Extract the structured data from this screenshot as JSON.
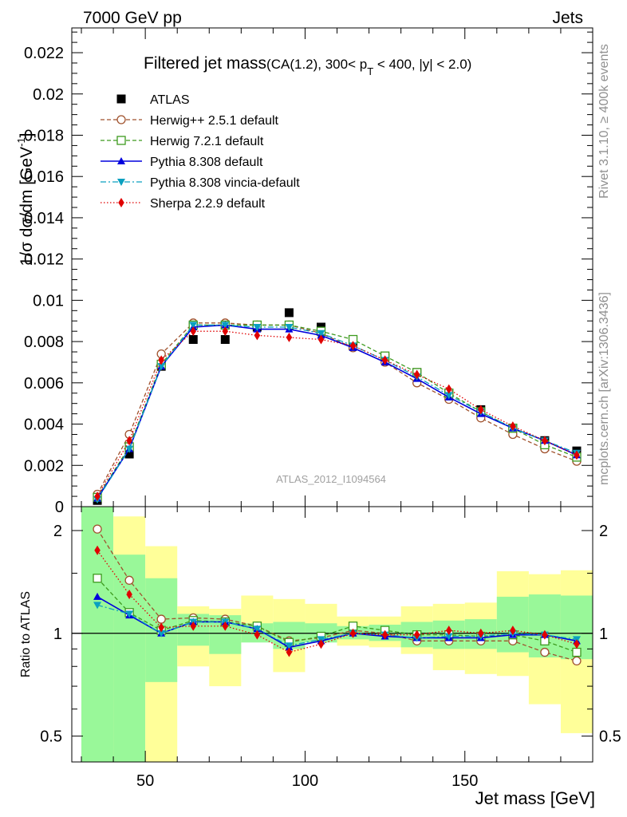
{
  "header": {
    "left": "7000 GeV pp",
    "right": "Jets",
    "title_main": "Filtered jet mass",
    "title_sub_a": "(CA(1.2), 300< p",
    "title_sub_T": "T",
    "title_sub_b": " < 400, |y| < 2.0)",
    "watermark": "ATLAS_2012_I1094564",
    "side_rivet": "Rivet 3.1.10, ≥ 400k events",
    "side_mcplots": "mcplots.cern.ch [arXiv:1306.3436]"
  },
  "colors": {
    "atlas": "#000000",
    "herwigpp": "#a0522d",
    "herwig7": "#3d9a1e",
    "pythia": "#0000dd",
    "vincia": "#0aa0c0",
    "sherpa": "#e00000",
    "band_inner": "#99f899",
    "band_outer": "#ffff99"
  },
  "chart_data": [
    {
      "type": "line",
      "panel": "main",
      "title": "Filtered jet mass(CA(1.2), 300< pT < 400, |y| < 2.0)",
      "xlabel": "Jet mass [GeV]",
      "ylabel": "1/σ dσ/dm [GeV⁻¹]",
      "ylabel_a": "1/σ dσ/dm [GeV",
      "ylabel_sup": "-1",
      "ylabel_b": "]",
      "xlim": [
        27,
        190
      ],
      "ylim": [
        0,
        0.0232
      ],
      "yticks": [
        "0",
        "0.002",
        "0.004",
        "0.006",
        "0.008",
        "0.01",
        "0.012",
        "0.014",
        "0.016",
        "0.018",
        "0.02",
        "0.022"
      ],
      "ytick_values": [
        0,
        0.002,
        0.004,
        0.006,
        0.008,
        0.01,
        0.012,
        0.014,
        0.016,
        0.018,
        0.02,
        0.022
      ],
      "x": [
        35,
        45,
        55,
        65,
        75,
        85,
        95,
        105,
        115,
        125,
        135,
        145,
        155,
        165,
        175,
        185
      ],
      "series": [
        {
          "key": "atlas",
          "name": "ATLAS",
          "marker": "square",
          "style": "points",
          "values": [
            0.0003,
            0.00255,
            0.0068,
            0.0081,
            0.0081,
            0.0087,
            0.0094,
            0.0087,
            0.0078,
            0.0072,
            0.0065,
            0.0055,
            0.0047,
            0.0038,
            0.0032,
            0.0027
          ]
        },
        {
          "key": "herwigpp",
          "name": "Herwig++ 2.5.1 default",
          "marker": "circle-open",
          "style": "dashed",
          "values": [
            0.0006,
            0.0035,
            0.0074,
            0.0089,
            0.0089,
            0.0088,
            0.0088,
            0.0084,
            0.0077,
            0.007,
            0.006,
            0.0052,
            0.0043,
            0.0035,
            0.0028,
            0.0022
          ]
        },
        {
          "key": "herwig7",
          "name": "Herwig 7.2.1 default",
          "marker": "square-open",
          "style": "dashed",
          "values": [
            0.00045,
            0.0029,
            0.0069,
            0.0088,
            0.0088,
            0.0088,
            0.0088,
            0.0085,
            0.0081,
            0.0073,
            0.0065,
            0.0055,
            0.0046,
            0.0038,
            0.003,
            0.0024
          ]
        },
        {
          "key": "pythia",
          "name": "Pythia 8.308 default",
          "marker": "triangle-up",
          "style": "solid",
          "values": [
            0.0004,
            0.0028,
            0.0068,
            0.0087,
            0.0088,
            0.0086,
            0.0086,
            0.0083,
            0.0077,
            0.007,
            0.0062,
            0.0053,
            0.0045,
            0.0038,
            0.0032,
            0.0025
          ]
        },
        {
          "key": "vincia",
          "name": "Pythia 8.308 vincia-default",
          "marker": "triangle-down",
          "style": "dashdot",
          "values": [
            0.00035,
            0.0028,
            0.0068,
            0.0088,
            0.0088,
            0.0087,
            0.0087,
            0.0084,
            0.0078,
            0.0071,
            0.0063,
            0.0054,
            0.0046,
            0.0038,
            0.0032,
            0.0026
          ]
        },
        {
          "key": "sherpa",
          "name": "Sherpa 2.2.9 default",
          "marker": "diamond",
          "style": "dotted",
          "values": [
            0.0005,
            0.0032,
            0.0071,
            0.0085,
            0.0085,
            0.0083,
            0.0082,
            0.0081,
            0.0078,
            0.0071,
            0.0064,
            0.0057,
            0.0047,
            0.0039,
            0.0032,
            0.0025
          ]
        }
      ]
    },
    {
      "type": "line",
      "panel": "ratio",
      "xlabel": "Jet mass [GeV]",
      "ylabel": "Ratio to ATLAS",
      "yscale": "log",
      "xlim": [
        27,
        190
      ],
      "ylim": [
        0.42,
        2.35
      ],
      "xticks": [
        "50",
        "100",
        "150"
      ],
      "xtick_values": [
        50,
        100,
        150
      ],
      "yticks": [
        "0.5",
        "1",
        "2"
      ],
      "ytick_values": [
        0.5,
        1,
        2
      ],
      "bins": [
        [
          30,
          40
        ],
        [
          40,
          50
        ],
        [
          50,
          60
        ],
        [
          60,
          70
        ],
        [
          70,
          80
        ],
        [
          80,
          90
        ],
        [
          90,
          100
        ],
        [
          100,
          110
        ],
        [
          110,
          120
        ],
        [
          120,
          130
        ],
        [
          130,
          140
        ],
        [
          140,
          150
        ],
        [
          150,
          160
        ],
        [
          160,
          170
        ],
        [
          170,
          180
        ],
        [
          180,
          190
        ]
      ],
      "band_inner": [
        [
          0.42,
          2.35
        ],
        [
          0.42,
          1.7
        ],
        [
          0.72,
          1.45
        ],
        [
          0.92,
          1.14
        ],
        [
          0.87,
          1.13
        ],
        [
          0.94,
          1.07
        ],
        [
          0.9,
          1.08
        ],
        [
          0.94,
          1.07
        ],
        [
          0.96,
          1.05
        ],
        [
          0.95,
          1.06
        ],
        [
          0.91,
          1.08
        ],
        [
          0.9,
          1.09
        ],
        [
          0.9,
          1.1
        ],
        [
          0.88,
          1.28
        ],
        [
          0.85,
          1.3
        ],
        [
          0.84,
          1.29
        ]
      ],
      "band_outer": [
        [
          0.42,
          2.35
        ],
        [
          0.42,
          2.2
        ],
        [
          0.42,
          1.8
        ],
        [
          0.8,
          1.2
        ],
        [
          0.7,
          1.18
        ],
        [
          0.95,
          1.29
        ],
        [
          0.77,
          1.26
        ],
        [
          0.95,
          1.22
        ],
        [
          0.92,
          1.12
        ],
        [
          0.91,
          1.12
        ],
        [
          0.87,
          1.2
        ],
        [
          0.78,
          1.22
        ],
        [
          0.76,
          1.23
        ],
        [
          0.75,
          1.52
        ],
        [
          0.62,
          1.49
        ],
        [
          0.51,
          1.53
        ]
      ],
      "series": [
        {
          "key": "herwigpp",
          "name": "Herwig++ 2.5.1 default",
          "values": [
            2.02,
            1.43,
            1.1,
            1.11,
            1.1,
            1.05,
            0.95,
            0.97,
            1.02,
            1.0,
            0.95,
            0.95,
            0.95,
            0.95,
            0.88,
            0.83
          ]
        },
        {
          "key": "herwig7",
          "name": "Herwig 7.2.1 default",
          "values": [
            1.45,
            1.15,
            1.02,
            1.09,
            1.08,
            1.05,
            0.94,
            0.98,
            1.05,
            1.02,
            0.99,
            0.99,
            0.98,
            0.99,
            0.95,
            0.88
          ]
        },
        {
          "key": "pythia",
          "name": "Pythia 8.308 default",
          "values": [
            1.28,
            1.13,
            1.0,
            1.08,
            1.08,
            1.03,
            0.91,
            0.95,
            1.0,
            0.98,
            0.97,
            0.97,
            0.97,
            0.99,
            0.99,
            0.95
          ]
        },
        {
          "key": "vincia",
          "name": "Pythia 8.308 vincia-default",
          "values": [
            1.21,
            1.14,
            1.0,
            1.08,
            1.08,
            1.03,
            0.92,
            0.96,
            1.0,
            0.99,
            0.97,
            0.98,
            0.98,
            1.0,
            0.99,
            0.96
          ]
        },
        {
          "key": "sherpa",
          "name": "Sherpa 2.2.9 default",
          "values": [
            1.75,
            1.3,
            1.04,
            1.05,
            1.05,
            0.99,
            0.88,
            0.93,
            1.0,
            0.99,
            0.99,
            1.02,
            1.0,
            1.02,
            0.99,
            0.93
          ]
        }
      ]
    }
  ]
}
